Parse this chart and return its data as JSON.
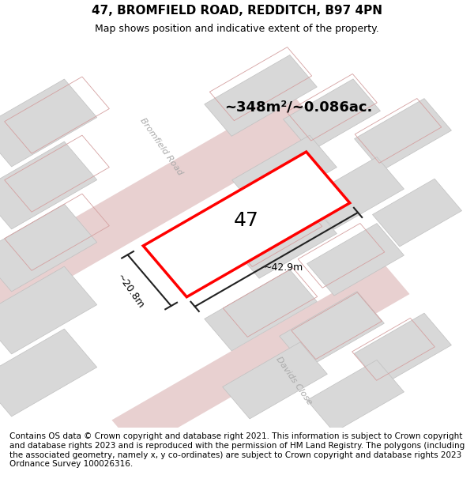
{
  "title": "47, BROMFIELD ROAD, REDDITCH, B97 4PN",
  "subtitle": "Map shows position and indicative extent of the property.",
  "footer": "Contains OS data © Crown copyright and database right 2021. This information is subject to Crown copyright and database rights 2023 and is reproduced with the permission of HM Land Registry. The polygons (including the associated geometry, namely x, y co-ordinates) are subject to Crown copyright and database rights 2023 Ordnance Survey 100026316.",
  "area_label": "~348m²/~0.086ac.",
  "width_label": "~42.9m",
  "height_label": "~20.8m",
  "property_number": "47",
  "map_bg": "#f2f2f2",
  "road_color_main": "#e8c8c8",
  "road_outline": "#d4a0a0",
  "property_fill": "#ffffff",
  "property_edge": "#ff0000",
  "measurement_color": "#222222",
  "road_label_color": "#aaaaaa",
  "title_fontsize": 11,
  "subtitle_fontsize": 9,
  "footer_fontsize": 7.5
}
